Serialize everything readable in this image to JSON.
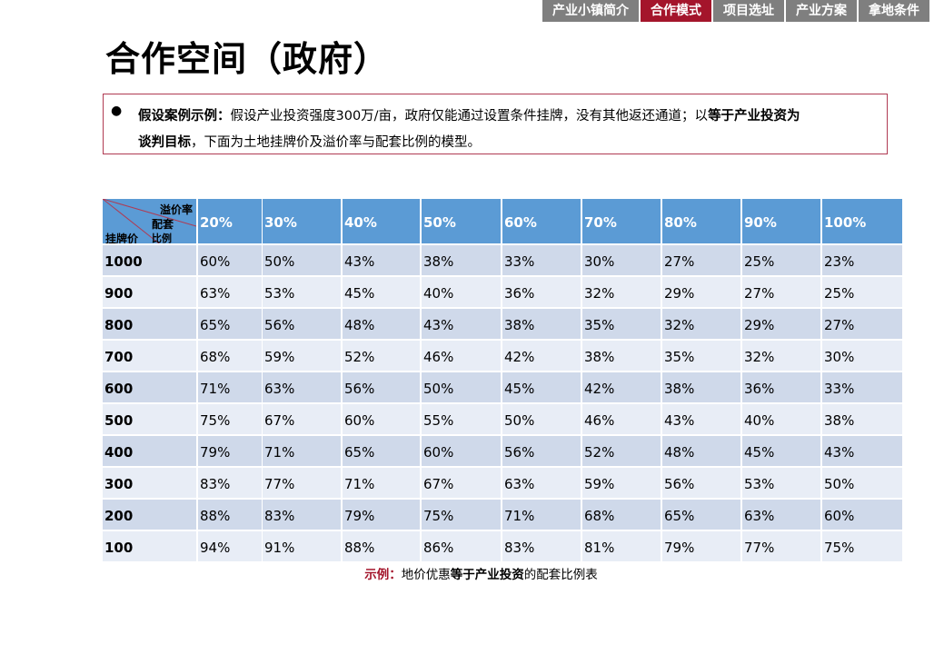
{
  "nav": {
    "tabs": [
      {
        "label": "产业小镇简介",
        "active": false
      },
      {
        "label": "合作模式",
        "active": true
      },
      {
        "label": "项目选址",
        "active": false
      },
      {
        "label": "产业方案",
        "active": false
      },
      {
        "label": "拿地条件",
        "active": false
      }
    ]
  },
  "title": "合作空间（政府）",
  "note": {
    "bullet": "●",
    "lead": "假设案例示例：",
    "text1": "假设产业投资强度300万/亩，政府仅能通过设置条件挂牌，没有其他返还通道；以",
    "bold1": "等于产业投资为",
    "bold2": "谈判目标",
    "text2": "，下面为土地挂牌价及溢价率与配套比例的模型。"
  },
  "table": {
    "corner": {
      "top": "溢价率",
      "mid1": "配套",
      "mid2": "比例",
      "bottom": "挂牌价"
    },
    "columns": [
      "20%",
      "30%",
      "40%",
      "50%",
      "60%",
      "70%",
      "80%",
      "90%",
      "100%"
    ],
    "rows": [
      {
        "label": "1000",
        "values": [
          "60%",
          "50%",
          "43%",
          "38%",
          "33%",
          "30%",
          "27%",
          "25%",
          "23%"
        ]
      },
      {
        "label": "900",
        "values": [
          "63%",
          "53%",
          "45%",
          "40%",
          "36%",
          "32%",
          "29%",
          "27%",
          "25%"
        ]
      },
      {
        "label": "800",
        "values": [
          "65%",
          "56%",
          "48%",
          "43%",
          "38%",
          "35%",
          "32%",
          "29%",
          "27%"
        ]
      },
      {
        "label": "700",
        "values": [
          "68%",
          "59%",
          "52%",
          "46%",
          "42%",
          "38%",
          "35%",
          "32%",
          "30%"
        ]
      },
      {
        "label": "600",
        "values": [
          "71%",
          "63%",
          "56%",
          "50%",
          "45%",
          "42%",
          "38%",
          "36%",
          "33%"
        ]
      },
      {
        "label": "500",
        "values": [
          "75%",
          "67%",
          "60%",
          "55%",
          "50%",
          "46%",
          "43%",
          "40%",
          "38%"
        ]
      },
      {
        "label": "400",
        "values": [
          "79%",
          "71%",
          "65%",
          "60%",
          "56%",
          "52%",
          "48%",
          "45%",
          "43%"
        ]
      },
      {
        "label": "300",
        "values": [
          "83%",
          "77%",
          "71%",
          "67%",
          "63%",
          "59%",
          "56%",
          "53%",
          "50%"
        ]
      },
      {
        "label": "200",
        "values": [
          "88%",
          "83%",
          "79%",
          "75%",
          "71%",
          "68%",
          "65%",
          "63%",
          "60%"
        ]
      },
      {
        "label": "100",
        "values": [
          "94%",
          "91%",
          "88%",
          "86%",
          "83%",
          "81%",
          "79%",
          "77%",
          "75%"
        ]
      }
    ]
  },
  "caption": {
    "prefix": "示例：",
    "text1": "地价优惠",
    "bold": "等于产业投资",
    "text2": "的配套比例表"
  },
  "colors": {
    "accent": "#a4152b",
    "header": "#5b9bd5",
    "row_dark": "#cfd9ea",
    "row_light": "#e8edf6"
  }
}
